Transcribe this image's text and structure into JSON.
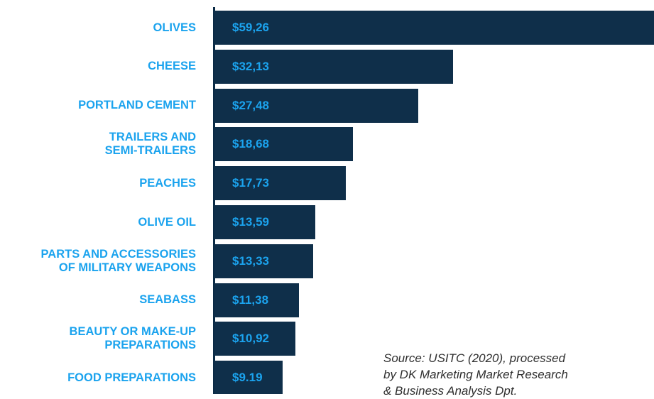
{
  "chart_data": {
    "type": "bar",
    "orientation": "horizontal",
    "categories": [
      "OLIVES",
      "CHEESE",
      "PORTLAND CEMENT",
      "TRAILERS AND\nSEMI-TRAILERS",
      "PEACHES",
      "OLIVE OIL",
      "PARTS AND ACCESSORIES\nOF MILITARY WEAPONS",
      "SEABASS",
      "BEAUTY OR MAKE-UP\nPREPARATIONS",
      "FOOD PREPARATIONS"
    ],
    "values": [
      59.26,
      32.13,
      27.48,
      18.68,
      17.73,
      13.59,
      13.33,
      11.38,
      10.92,
      9.19
    ],
    "data_labels": [
      "$59,26",
      "$32,13",
      "$27,48",
      "$18,68",
      "$17,73",
      "$13,59",
      "$13,33",
      "$11,38",
      "$10,92",
      "$9.19"
    ],
    "title": "",
    "xlabel": "",
    "ylabel": "",
    "grid": false,
    "legend": "none",
    "colors": {
      "bar": "#0f2f4a",
      "label": "#1ba3ee",
      "axis": "#0a2a45"
    }
  },
  "source_note": "Source: USITC (2020), processed\nby DK Marketing Market Research\n& Business Analysis Dpt."
}
